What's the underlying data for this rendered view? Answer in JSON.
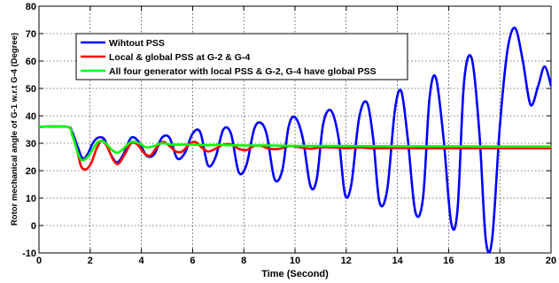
{
  "chart_data": {
    "type": "line",
    "title": "",
    "xlabel": "Time (Second)",
    "ylabel": "Rotor mechanical angle of G-1 w.r.t G-4 (Degree)",
    "xlim": [
      0,
      20
    ],
    "ylim": [
      -10,
      80
    ],
    "xticks": [
      0,
      2,
      4,
      6,
      8,
      10,
      12,
      14,
      16,
      18,
      20
    ],
    "yticks": [
      -10,
      0,
      10,
      20,
      30,
      40,
      50,
      60,
      70,
      80
    ],
    "grid": true,
    "legend_position": "top-left",
    "series": [
      {
        "name": "Wihtout PSS",
        "color": "#0000ff",
        "x": [
          0,
          1.1,
          1.3,
          1.5,
          1.7,
          1.9,
          2.1,
          2.3,
          2.55,
          2.8,
          3.05,
          3.3,
          3.6,
          3.9,
          4.2,
          4.5,
          4.8,
          5.1,
          5.4,
          5.7,
          6.0,
          6.3,
          6.6,
          6.9,
          7.2,
          7.5,
          7.8,
          8.1,
          8.4,
          8.65,
          8.9,
          9.2,
          9.5,
          9.75,
          10.0,
          10.3,
          10.6,
          10.85,
          11.1,
          11.4,
          11.7,
          11.95,
          12.2,
          12.5,
          12.8,
          13.05,
          13.3,
          13.6,
          13.9,
          14.15,
          14.4,
          14.7,
          15.0,
          15.25,
          15.5,
          15.8,
          16.1,
          16.35,
          16.6,
          16.9,
          17.2,
          17.45,
          17.7,
          18.0,
          18.3,
          18.6,
          18.9,
          19.2,
          19.5,
          19.75,
          20.0
        ],
        "values": [
          36,
          36,
          34,
          29,
          24.5,
          26,
          30,
          32,
          31.5,
          26,
          23,
          26,
          32,
          30.5,
          25.5,
          26,
          32,
          32,
          24.5,
          26.5,
          33.5,
          34,
          22,
          25,
          35,
          33.5,
          19.5,
          22,
          35,
          37.5,
          33,
          17,
          20,
          36,
          39.5,
          32,
          14.5,
          17,
          37,
          42,
          32,
          11.5,
          15,
          39,
          45,
          32,
          8.5,
          13,
          42,
          49,
          32,
          5,
          10,
          46,
          54,
          32,
          1,
          6,
          52,
          61,
          34,
          -5,
          -5,
          36,
          64,
          72,
          60,
          44,
          51,
          58,
          51
        ]
      },
      {
        "name": "Local & global PSS at G-2 & G-4",
        "color": "#ff0000",
        "x": [
          0,
          1.1,
          1.3,
          1.5,
          1.65,
          1.85,
          2.05,
          2.25,
          2.45,
          2.65,
          2.9,
          3.1,
          3.35,
          3.6,
          3.85,
          4.1,
          4.35,
          4.6,
          4.85,
          5.1,
          5.35,
          5.6,
          5.85,
          6.1,
          6.35,
          6.6,
          6.9,
          7.2,
          7.5,
          7.8,
          8.1,
          8.4,
          8.7,
          9.0,
          9.4,
          9.8,
          10.2,
          10.6,
          11.0,
          11.5,
          12.0,
          12.5,
          13.0,
          14.0,
          15.0,
          16.0,
          17.0,
          18.0,
          19.0,
          20.0
        ],
        "values": [
          36,
          36,
          33,
          27,
          21.5,
          20.5,
          23,
          28,
          31,
          29,
          24,
          22.5,
          26,
          30,
          29.5,
          26.5,
          25.5,
          28.5,
          30.5,
          29,
          27,
          27,
          29.5,
          30.5,
          28.5,
          27,
          28,
          29.5,
          29.5,
          28,
          27.5,
          29,
          29,
          28,
          28,
          29,
          28.5,
          28,
          28.5,
          28.5,
          28.2,
          28.5,
          28.2,
          28.3,
          28.2,
          28.2,
          28.2,
          28.2,
          28.2,
          28.2
        ]
      },
      {
        "name": "All four generator with local PSS & G-2, G-4 have global PSS",
        "color": "#00ff00",
        "x": [
          0,
          1.1,
          1.3,
          1.5,
          1.65,
          1.85,
          2.05,
          2.3,
          2.55,
          2.8,
          3.05,
          3.3,
          3.6,
          3.9,
          4.2,
          4.5,
          4.8,
          5.2,
          5.6,
          6.0,
          6.5,
          7.0,
          7.5,
          8.0,
          9.0,
          10.0,
          12.0,
          14.0,
          16.0,
          18.0,
          20.0
        ],
        "values": [
          36,
          36,
          33,
          27,
          24,
          24.5,
          27,
          30.5,
          30.5,
          28,
          26.5,
          28,
          30.5,
          30,
          28.5,
          29,
          30,
          29.5,
          29.5,
          29.5,
          29.3,
          29.4,
          29.3,
          29.2,
          29.2,
          29,
          29,
          28.9,
          28.9,
          28.8,
          28.8
        ]
      }
    ]
  }
}
